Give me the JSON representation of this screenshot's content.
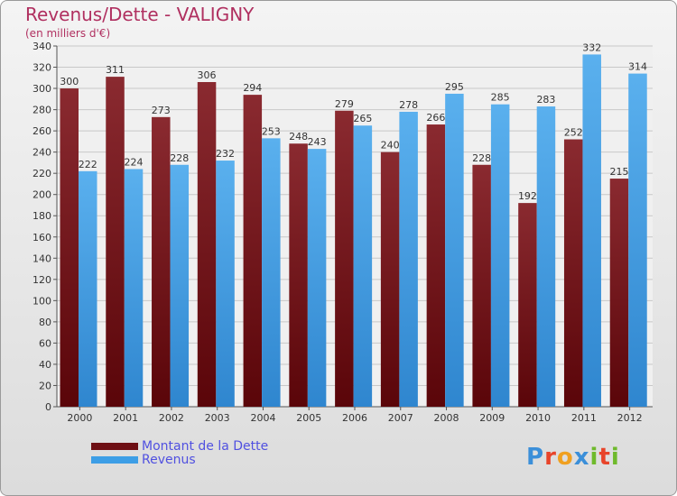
{
  "header": {
    "title": "Revenus/Dette - VALIGNY",
    "subtitle": "(en milliers d'€)"
  },
  "legend": {
    "items": [
      {
        "label": "Montant de la Dette",
        "color": "#6e0f14"
      },
      {
        "label": "Revenus",
        "color": "#3d9ee6"
      }
    ]
  },
  "branding": {
    "logo_text": "Proxiti",
    "logo_colors": [
      "#3b8fd9",
      "#e8442a",
      "#f0a020",
      "#3b8fd9",
      "#6fba2c",
      "#e8442a",
      "#6fba2c"
    ]
  },
  "chart_data": {
    "type": "bar",
    "title": "Revenus/Dette - VALIGNY",
    "subtitle": "(en milliers d'€)",
    "categories": [
      "2000",
      "2001",
      "2002",
      "2003",
      "2004",
      "2005",
      "2006",
      "2007",
      "2008",
      "2009",
      "2010",
      "2011",
      "2012"
    ],
    "series": [
      {
        "name": "Montant de la Dette",
        "color": "#6e0f14",
        "values": [
          300,
          311,
          273,
          306,
          294,
          248,
          279,
          240,
          266,
          228,
          192,
          252,
          215
        ]
      },
      {
        "name": "Revenus",
        "color": "#3d9ee6",
        "values": [
          222,
          224,
          228,
          232,
          253,
          243,
          265,
          278,
          295,
          285,
          283,
          332,
          314
        ]
      }
    ],
    "ylim": [
      0,
      340
    ],
    "ytick_step": 20,
    "grid": true,
    "data_labels": true,
    "legend_position": "bottom-left"
  }
}
